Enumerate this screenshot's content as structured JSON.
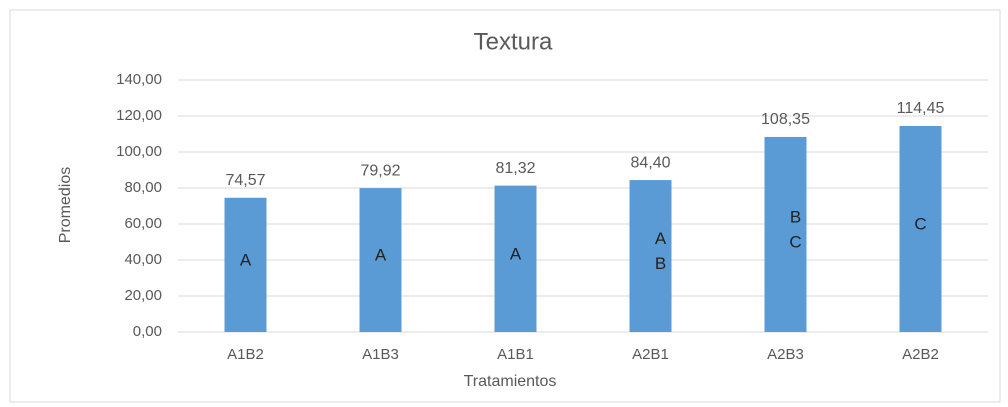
{
  "chart_data": {
    "type": "bar",
    "title": "Textura",
    "x_label": "Tratamientos",
    "y_label": "Promedios",
    "categories": [
      "A1B2",
      "A1B3",
      "A1B1",
      "A2B1",
      "A2B3",
      "A2B2"
    ],
    "values": [
      74.57,
      79.92,
      81.32,
      84.4,
      108.35,
      114.45
    ],
    "value_labels": [
      "74,57",
      "79,92",
      "81,32",
      "84,40",
      "108,35",
      "114,45"
    ],
    "annotations": [
      [
        "A"
      ],
      [
        "A"
      ],
      [
        "A"
      ],
      [
        "A",
        "B"
      ],
      [
        "B",
        "C"
      ],
      [
        "C"
      ]
    ],
    "color": "#5b9bd5",
    "ylim": [
      0,
      140
    ],
    "yticks": [
      {
        "value": 0,
        "label": "0,00"
      },
      {
        "value": 20,
        "label": "20,00"
      },
      {
        "value": 40,
        "label": "40,00"
      },
      {
        "value": 60,
        "label": "60,00"
      },
      {
        "value": 80,
        "label": "80,00"
      },
      {
        "value": 100,
        "label": "100,00"
      },
      {
        "value": 120,
        "label": "120,00"
      },
      {
        "value": 140,
        "label": "140,00"
      }
    ],
    "grid": true
  }
}
